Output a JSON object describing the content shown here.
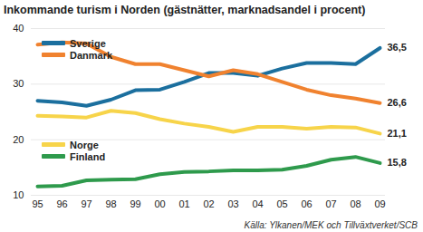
{
  "chart_data": {
    "type": "line",
    "title": "Inkommande turism i Norden (gästnätter, marknadsandel i procent)",
    "source": "Källa: Ylkanen/MEK och Tillväxtverket/SCB",
    "categories": [
      "95",
      "96",
      "97",
      "98",
      "99",
      "00",
      "01",
      "02",
      "03",
      "04",
      "05",
      "06",
      "07",
      "08",
      "09"
    ],
    "series": [
      {
        "name": "Sverige",
        "color": "#1b6f9e",
        "values": [
          27.0,
          26.7,
          26.1,
          27.2,
          28.9,
          29.0,
          30.4,
          32.0,
          32.0,
          31.5,
          32.8,
          33.8,
          33.8,
          33.6,
          36.5
        ],
        "value_labels": [
          null,
          null,
          null,
          null,
          null,
          null,
          null,
          null,
          null,
          null,
          null,
          null,
          null,
          null,
          "36,5"
        ]
      },
      {
        "name": "Danmark",
        "color": "#f0822f",
        "values": [
          37.1,
          37.5,
          37.3,
          34.9,
          33.6,
          33.6,
          32.5,
          31.4,
          32.5,
          31.8,
          30.4,
          29.0,
          28.0,
          27.4,
          26.6
        ],
        "value_labels": [
          null,
          null,
          null,
          null,
          null,
          null,
          null,
          null,
          null,
          null,
          null,
          null,
          null,
          null,
          "26,6"
        ]
      },
      {
        "name": "Norge",
        "color": "#f7d44a",
        "values": [
          24.3,
          24.2,
          24.0,
          25.2,
          24.8,
          23.7,
          22.9,
          22.3,
          21.4,
          22.3,
          22.3,
          22.0,
          22.3,
          22.2,
          21.1
        ],
        "value_labels": [
          null,
          null,
          null,
          null,
          null,
          null,
          null,
          null,
          null,
          null,
          null,
          null,
          null,
          null,
          "21,1"
        ]
      },
      {
        "name": "Finland",
        "color": "#2e9a4c",
        "values": [
          11.6,
          11.7,
          12.7,
          12.8,
          12.9,
          13.8,
          14.2,
          14.3,
          14.5,
          14.5,
          14.6,
          15.3,
          16.4,
          16.9,
          15.8
        ],
        "value_labels": [
          null,
          null,
          null,
          null,
          null,
          null,
          null,
          null,
          null,
          null,
          null,
          null,
          null,
          null,
          "15,8"
        ]
      }
    ],
    "ylim": [
      10,
      40
    ],
    "yticks": [
      10,
      20,
      30,
      40
    ],
    "grid": true
  }
}
